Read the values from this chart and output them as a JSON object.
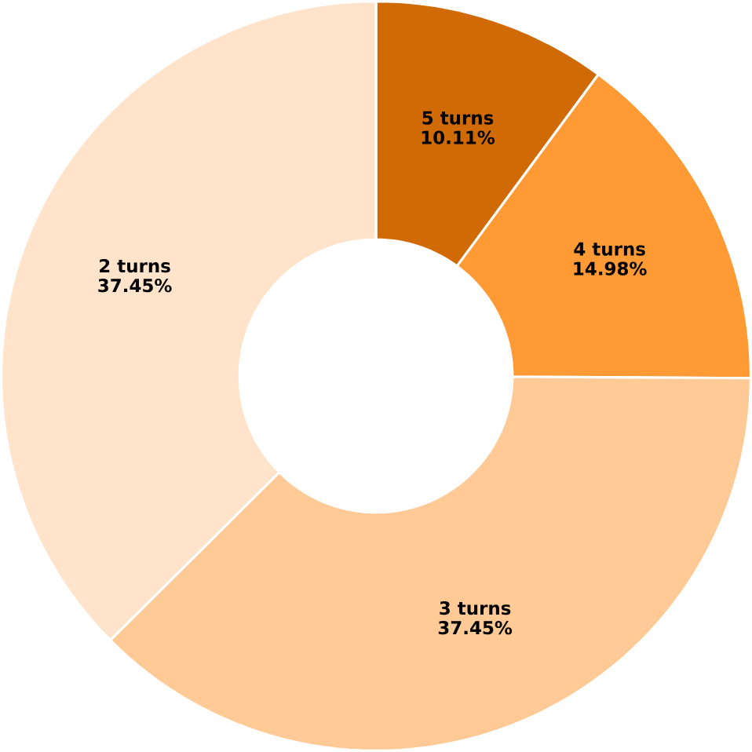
{
  "chart_data": {
    "type": "donut",
    "categories": [
      "5 turns",
      "4 turns",
      "3 turns",
      "2 turns"
    ],
    "values": [
      10.11,
      14.98,
      37.45,
      37.45
    ],
    "value_labels": [
      "10.11%",
      "14.98%",
      "37.45%",
      "37.45%"
    ],
    "colors": [
      "#d06a05",
      "#ff9a35",
      "#ffca96",
      "#ffe3ca"
    ]
  }
}
